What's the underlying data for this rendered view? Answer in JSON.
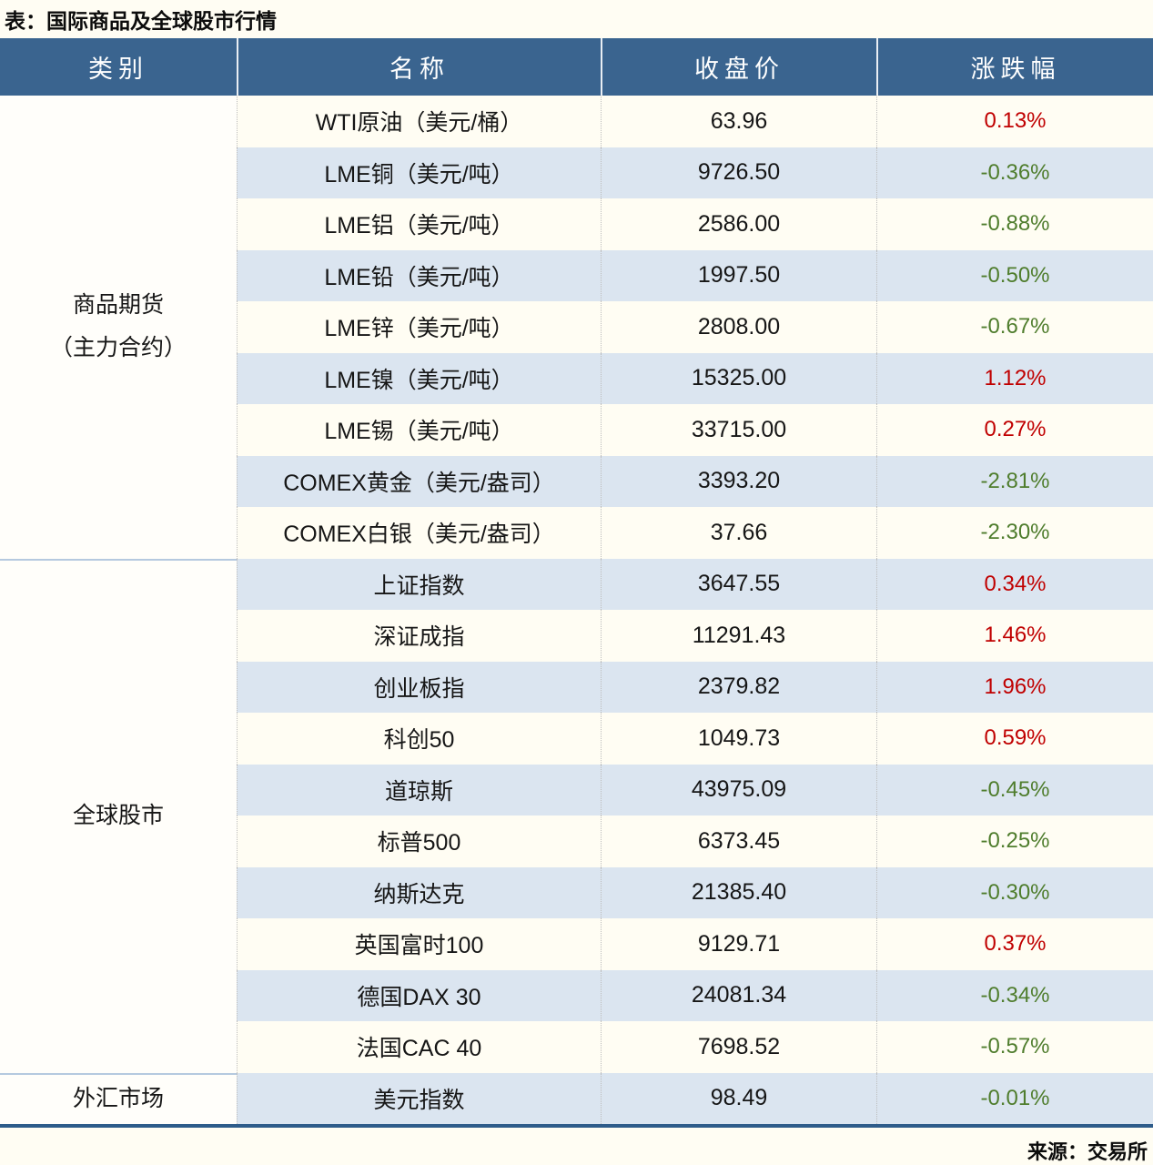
{
  "title": "表：国际商品及全球股市行情",
  "source": "来源：交易所",
  "colors": {
    "up": "#c00000",
    "down": "#4f7d2d",
    "header_bg": "#3a648f",
    "stripe": "#dbe5f0"
  },
  "table": {
    "headers": {
      "category": "类别",
      "name": "名称",
      "close": "收盘价",
      "change": "涨跌幅"
    },
    "categories": [
      {
        "line1": "商品期货",
        "line2": "（主力合约）"
      },
      {
        "line1": "全球股市",
        "line2": ""
      },
      {
        "line1": "外汇市场",
        "line2": ""
      }
    ],
    "rows": [
      {
        "name": "WTI原油（美元/桶）",
        "close": "63.96",
        "change": "0.13%"
      },
      {
        "name": "LME铜（美元/吨）",
        "close": "9726.50",
        "change": "-0.36%"
      },
      {
        "name": "LME铝（美元/吨）",
        "close": "2586.00",
        "change": "-0.88%"
      },
      {
        "name": "LME铅（美元/吨）",
        "close": "1997.50",
        "change": "-0.50%"
      },
      {
        "name": "LME锌（美元/吨）",
        "close": "2808.00",
        "change": "-0.67%"
      },
      {
        "name": "LME镍（美元/吨）",
        "close": "15325.00",
        "change": "1.12%"
      },
      {
        "name": "LME锡（美元/吨）",
        "close": "33715.00",
        "change": "0.27%"
      },
      {
        "name": "COMEX黄金（美元/盎司）",
        "close": "3393.20",
        "change": "-2.81%"
      },
      {
        "name": "COMEX白银（美元/盎司）",
        "close": "37.66",
        "change": "-2.30%"
      },
      {
        "name": "上证指数",
        "close": "3647.55",
        "change": "0.34%"
      },
      {
        "name": "深证成指",
        "close": "11291.43",
        "change": "1.46%"
      },
      {
        "name": "创业板指",
        "close": "2379.82",
        "change": "1.96%"
      },
      {
        "name": "科创50",
        "close": "1049.73",
        "change": "0.59%"
      },
      {
        "name": "道琼斯",
        "close": "43975.09",
        "change": "-0.45%"
      },
      {
        "name": "标普500",
        "close": "6373.45",
        "change": "-0.25%"
      },
      {
        "name": "纳斯达克",
        "close": "21385.40",
        "change": "-0.30%"
      },
      {
        "name": "英国富时100",
        "close": "9129.71",
        "change": "0.37%"
      },
      {
        "name": "德国DAX 30",
        "close": "24081.34",
        "change": "-0.34%"
      },
      {
        "name": "法国CAC 40",
        "close": "7698.52",
        "change": "-0.57%"
      },
      {
        "name": "美元指数",
        "close": "98.49",
        "change": "-0.01%"
      }
    ]
  },
  "chart_data": {
    "type": "table",
    "title": "表：国际商品及全球股市行情",
    "columns": [
      "类别",
      "名称",
      "收盘价",
      "涨跌幅"
    ],
    "rows": [
      [
        "商品期货（主力合约）",
        "WTI原油（美元/桶）",
        63.96,
        "0.13%"
      ],
      [
        "商品期货（主力合约）",
        "LME铜（美元/吨）",
        9726.5,
        "-0.36%"
      ],
      [
        "商品期货（主力合约）",
        "LME铝（美元/吨）",
        2586.0,
        "-0.88%"
      ],
      [
        "商品期货（主力合约）",
        "LME铅（美元/吨）",
        1997.5,
        "-0.50%"
      ],
      [
        "商品期货（主力合约）",
        "LME锌（美元/吨）",
        2808.0,
        "-0.67%"
      ],
      [
        "商品期货（主力合约）",
        "LME镍（美元/吨）",
        15325.0,
        "1.12%"
      ],
      [
        "商品期货（主力合约）",
        "LME锡（美元/吨）",
        33715.0,
        "0.27%"
      ],
      [
        "商品期货（主力合约）",
        "COMEX黄金（美元/盎司）",
        3393.2,
        "-2.81%"
      ],
      [
        "商品期货（主力合约）",
        "COMEX白银（美元/盎司）",
        37.66,
        "-2.30%"
      ],
      [
        "全球股市",
        "上证指数",
        3647.55,
        "0.34%"
      ],
      [
        "全球股市",
        "深证成指",
        11291.43,
        "1.46%"
      ],
      [
        "全球股市",
        "创业板指",
        2379.82,
        "1.96%"
      ],
      [
        "全球股市",
        "科创50",
        1049.73,
        "0.59%"
      ],
      [
        "全球股市",
        "道琼斯",
        43975.09,
        "-0.45%"
      ],
      [
        "全球股市",
        "标普500",
        6373.45,
        "-0.25%"
      ],
      [
        "全球股市",
        "纳斯达克",
        21385.4,
        "-0.30%"
      ],
      [
        "全球股市",
        "英国富时100",
        9129.71,
        "0.37%"
      ],
      [
        "全球股市",
        "德国DAX 30",
        24081.34,
        "-0.34%"
      ],
      [
        "全球股市",
        "法国CAC 40",
        7698.52,
        "-0.57%"
      ],
      [
        "外汇市场",
        "美元指数",
        98.49,
        "-0.01%"
      ]
    ],
    "notes": "涨跌幅颜色：正值红色(#c00000)，负值绿色(#4f7d2d)；来源：交易所"
  }
}
